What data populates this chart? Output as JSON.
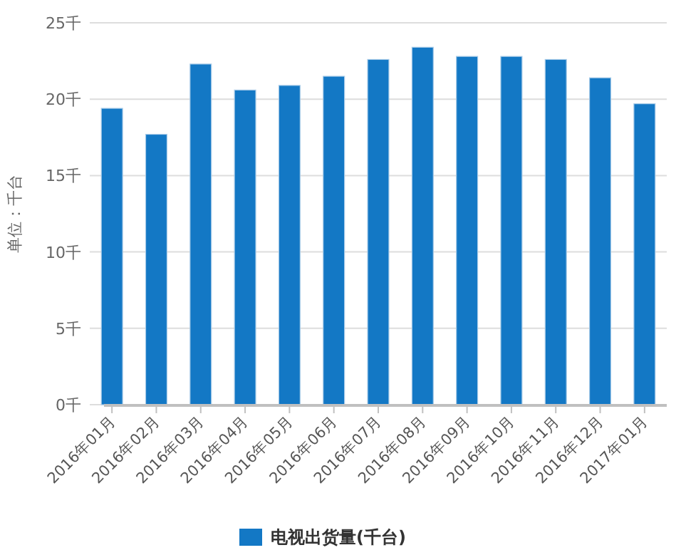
{
  "chart_data": {
    "type": "bar",
    "ylabel": "单位：千台",
    "categories": [
      "2016年01月",
      "2016年02月",
      "2016年03月",
      "2016年04月",
      "2016年05月",
      "2016年06月",
      "2016年07月",
      "2016年08月",
      "2016年09月",
      "2016年10月",
      "2016年11月",
      "2016年12月",
      "2017年01月"
    ],
    "series": [
      {
        "name": "电视出货量(千台)",
        "color": "#1378c5",
        "values": [
          19.4,
          17.7,
          22.3,
          20.6,
          20.9,
          21.5,
          22.6,
          23.4,
          22.8,
          22.8,
          22.6,
          21.4,
          19.7
        ]
      }
    ],
    "ylim": [
      0,
      25
    ],
    "yticks": [
      {
        "value": 0,
        "label": "0千"
      },
      {
        "value": 5,
        "label": "5千"
      },
      {
        "value": 10,
        "label": "10千"
      },
      {
        "value": 15,
        "label": "15千"
      },
      {
        "value": 20,
        "label": "20千"
      },
      {
        "value": 25,
        "label": "25千"
      }
    ],
    "grid": "y",
    "legend": "bottom"
  }
}
